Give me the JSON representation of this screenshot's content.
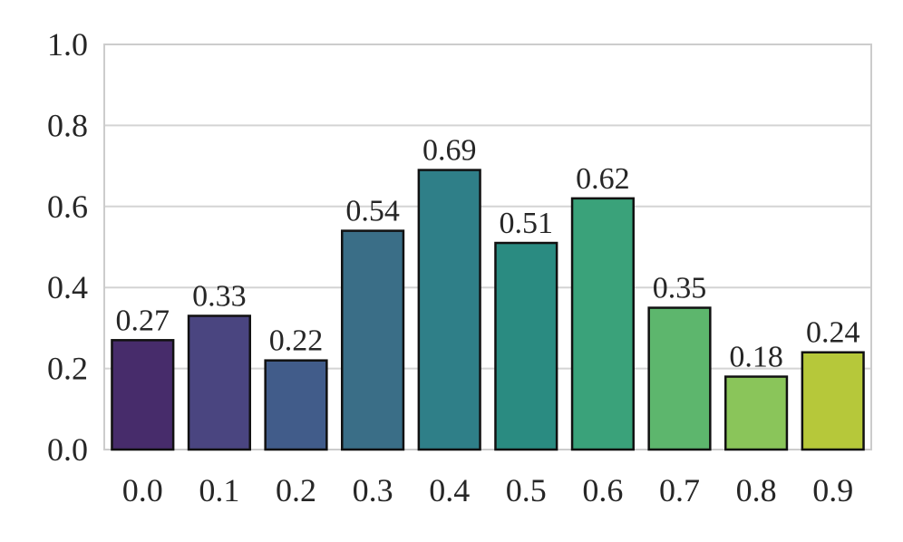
{
  "chart_data": {
    "type": "bar",
    "categories": [
      "0.0",
      "0.1",
      "0.2",
      "0.3",
      "0.4",
      "0.5",
      "0.6",
      "0.7",
      "0.8",
      "0.9"
    ],
    "values": [
      0.27,
      0.33,
      0.22,
      0.54,
      0.69,
      0.51,
      0.62,
      0.35,
      0.18,
      0.24
    ],
    "data_labels": [
      "0.27",
      "0.33",
      "0.22",
      "0.54",
      "0.69",
      "0.51",
      "0.62",
      "0.35",
      "0.18",
      "0.24"
    ],
    "colors": [
      "#472c6b",
      "#4a4580",
      "#415c8a",
      "#3a6e87",
      "#2f7f88",
      "#2a8b81",
      "#3aa27a",
      "#5db66d",
      "#8ac55a",
      "#b6c83a"
    ],
    "title": "",
    "xlabel": "",
    "ylabel": "",
    "ylim": [
      0,
      1.0
    ],
    "yticks": [
      "0.0",
      "0.2",
      "0.4",
      "0.6",
      "0.8",
      "1.0"
    ],
    "grid": "horizontal",
    "edge_color": "#111111"
  }
}
